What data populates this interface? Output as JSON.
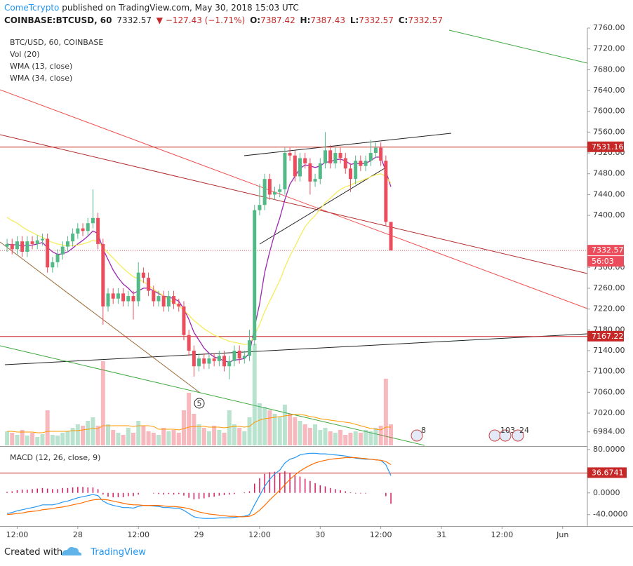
{
  "header": {
    "author": "ComeTcrypto",
    "published": "published on TradingView.com, May 30, 2018 15:03 UTC",
    "symbol": "COINBASE:BTCUSD, 60",
    "last": "7332.57",
    "change": "▼ −127.43 (−1.71%)",
    "ohlc": [
      {
        "label": "O:",
        "value": "7387.42"
      },
      {
        "label": "H:",
        "value": "7387.43"
      },
      {
        "label": "L:",
        "value": "7332.57"
      },
      {
        "label": "C:",
        "value": "7332.57"
      }
    ]
  },
  "chart_data": [
    {
      "type": "candlestick",
      "title": "BTC/USD, 60, COINBASE",
      "up_color": "#53b987",
      "down_color": "#eb4d5c",
      "open": [
        7340,
        7345,
        7335,
        7350,
        7330,
        7350,
        7345,
        7352,
        7355,
        7300,
        7310,
        7325,
        7340,
        7350,
        7365,
        7375,
        7370,
        7385,
        7395,
        7345,
        7225,
        7250,
        7240,
        7250,
        7235,
        7245,
        7235,
        7290,
        7280,
        7255,
        7235,
        7245,
        7225,
        7245,
        7230,
        7225,
        7170,
        7140,
        7110,
        7125,
        7115,
        7125,
        7120,
        7130,
        7110,
        7120,
        7140,
        7125,
        7130,
        7160,
        7410,
        7420,
        7470,
        7440,
        7445,
        7450,
        7520,
        7515,
        7475,
        7510,
        7500,
        7465,
        7470,
        7500,
        7525,
        7500,
        7520,
        7510,
        7490,
        7470,
        7505,
        7495,
        7505,
        7520,
        7530,
        7505,
        7387.42
      ],
      "high": [
        7355,
        7355,
        7360,
        7360,
        7360,
        7360,
        7362,
        7365,
        7365,
        7320,
        7335,
        7350,
        7360,
        7375,
        7385,
        7385,
        7395,
        7450,
        7405,
        7355,
        7260,
        7260,
        7260,
        7260,
        7255,
        7255,
        7310,
        7300,
        7290,
        7265,
        7255,
        7255,
        7255,
        7255,
        7240,
        7235,
        7180,
        7150,
        7135,
        7135,
        7135,
        7135,
        7140,
        7140,
        7130,
        7150,
        7150,
        7140,
        7180,
        7420,
        7460,
        7480,
        7480,
        7455,
        7460,
        7530,
        7530,
        7525,
        7520,
        7520,
        7510,
        7480,
        7510,
        7560,
        7535,
        7530,
        7530,
        7520,
        7500,
        7515,
        7515,
        7515,
        7545,
        7540,
        7540,
        7515,
        7387.43
      ],
      "low": [
        7330,
        7325,
        7325,
        7320,
        7320,
        7335,
        7335,
        7342,
        7290,
        7290,
        7300,
        7315,
        7330,
        7340,
        7355,
        7360,
        7360,
        7375,
        7335,
        7190,
        7215,
        7230,
        7230,
        7225,
        7225,
        7200,
        7225,
        7270,
        7245,
        7225,
        7225,
        7215,
        7215,
        7220,
        7215,
        7160,
        7130,
        7090,
        7100,
        7105,
        7105,
        7110,
        7110,
        7100,
        7085,
        7110,
        7115,
        7115,
        7120,
        7150,
        7400,
        7410,
        7430,
        7430,
        7435,
        7440,
        7505,
        7465,
        7465,
        7490,
        7440,
        7455,
        7460,
        7490,
        7490,
        7490,
        7500,
        7480,
        7445,
        7460,
        7485,
        7485,
        7495,
        7510,
        7495,
        7380,
        7332.57
      ],
      "close": [
        7345,
        7335,
        7350,
        7330,
        7350,
        7345,
        7352,
        7355,
        7300,
        7310,
        7325,
        7340,
        7350,
        7365,
        7375,
        7370,
        7385,
        7395,
        7345,
        7225,
        7250,
        7240,
        7250,
        7235,
        7245,
        7235,
        7290,
        7280,
        7255,
        7235,
        7245,
        7225,
        7245,
        7230,
        7225,
        7170,
        7140,
        7110,
        7125,
        7115,
        7125,
        7120,
        7130,
        7110,
        7120,
        7140,
        7125,
        7130,
        7160,
        7410,
        7420,
        7470,
        7440,
        7445,
        7450,
        7520,
        7515,
        7475,
        7510,
        7500,
        7465,
        7470,
        7500,
        7525,
        7500,
        7520,
        7510,
        7490,
        7470,
        7505,
        7495,
        7505,
        7520,
        7530,
        7505,
        7387.42,
        7332.57
      ],
      "volume": {
        "name": "Vol (20)",
        "ma_color": "#ff9800",
        "values": [
          20,
          18,
          15,
          22,
          14,
          18,
          12,
          16,
          50,
          15,
          14,
          18,
          20,
          25,
          30,
          28,
          35,
          40,
          28,
          120,
          30,
          22,
          18,
          15,
          25,
          18,
          35,
          28,
          20,
          18,
          15,
          25,
          20,
          22,
          18,
          50,
          75,
          45,
          30,
          25,
          20,
          28,
          22,
          18,
          50,
          30,
          25,
          20,
          40,
          145,
          60,
          55,
          50,
          45,
          40,
          58,
          45,
          40,
          35,
          30,
          25,
          30,
          22,
          25,
          20,
          18,
          22,
          15,
          18,
          20,
          18,
          22,
          20,
          25,
          28,
          95,
          30
        ],
        "ma": [
          20,
          20,
          19,
          19,
          19,
          19,
          18,
          18,
          20,
          20,
          20,
          20,
          20,
          21,
          21,
          22,
          23,
          24,
          24,
          28,
          28,
          28,
          28,
          28,
          28,
          27,
          28,
          28,
          28,
          27,
          23,
          23,
          23,
          23,
          22,
          24,
          26,
          27,
          27,
          27,
          26,
          26,
          26,
          25,
          26,
          27,
          27,
          26,
          27,
          33,
          36,
          38,
          39,
          40,
          41,
          42,
          43,
          44,
          44,
          43,
          41,
          40,
          38,
          37,
          36,
          35,
          34,
          33,
          32,
          30,
          28,
          26,
          24,
          23,
          22,
          26,
          26
        ]
      },
      "series": [
        {
          "name": "WMA (13, close)",
          "color": "#9c27b0",
          "values": [
            7345,
            7343,
            7344,
            7341,
            7342,
            7343,
            7345,
            7348,
            7338,
            7330,
            7325,
            7326,
            7330,
            7337,
            7345,
            7352,
            7360,
            7370,
            7365,
            7335,
            7315,
            7295,
            7280,
            7268,
            7260,
            7250,
            7255,
            7260,
            7260,
            7255,
            7250,
            7245,
            7243,
            7240,
            7235,
            7220,
            7200,
            7175,
            7160,
            7145,
            7135,
            7128,
            7125,
            7120,
            7118,
            7122,
            7123,
            7125,
            7135,
            7185,
            7230,
            7290,
            7330,
            7365,
            7395,
            7430,
            7460,
            7475,
            7490,
            7497,
            7495,
            7492,
            7495,
            7502,
            7503,
            7507,
            7508,
            7505,
            7498,
            7500,
            7499,
            7500,
            7505,
            7512,
            7512,
            7485,
            7455
          ]
        },
        {
          "name": "WMA (34, close)",
          "color": "#f5ec5c",
          "values": [
            7396,
            7390,
            7385,
            7378,
            7372,
            7367,
            7362,
            7358,
            7352,
            7348,
            7345,
            7343,
            7342,
            7342,
            7343,
            7345,
            7348,
            7352,
            7350,
            7338,
            7328,
            7318,
            7308,
            7298,
            7290,
            7282,
            7278,
            7272,
            7266,
            7258,
            7252,
            7245,
            7238,
            7232,
            7226,
            7218,
            7208,
            7198,
            7190,
            7182,
            7176,
            7170,
            7166,
            7162,
            7158,
            7156,
            7154,
            7152,
            7153,
            7170,
            7190,
            7215,
            7235,
            7255,
            7275,
            7300,
            7322,
            7340,
            7360,
            7378,
            7390,
            7400,
            7412,
            7425,
            7433,
            7442,
            7450,
            7455,
            7458,
            7463,
            7466,
            7470,
            7474,
            7478,
            7480,
            7475,
            7462
          ]
        }
      ],
      "xlim": [
        -1.4,
        114.9
      ],
      "xticks": [
        {
          "value": 2,
          "label": "12:00"
        },
        {
          "value": 14,
          "label": "28"
        },
        {
          "value": 26,
          "label": "12:00"
        },
        {
          "value": 38,
          "label": "29"
        },
        {
          "value": 50,
          "label": "12:00"
        },
        {
          "value": 62,
          "label": "30"
        },
        {
          "value": 74,
          "label": "12:00"
        },
        {
          "value": 86,
          "label": "31"
        },
        {
          "value": 98,
          "label": "12:00"
        },
        {
          "value": 110,
          "label": "Jun"
        }
      ],
      "ylim": [
        6958,
        7760
      ],
      "yticks": [
        {
          "value": 7760,
          "label": "7760.00"
        },
        {
          "value": 7720,
          "label": "7720.00"
        },
        {
          "value": 7680,
          "label": "7680.00"
        },
        {
          "value": 7640,
          "label": "7640.00"
        },
        {
          "value": 7600,
          "label": "7600.00"
        },
        {
          "value": 7560,
          "label": "7560.00"
        },
        {
          "value": 7520,
          "label": "7520.00"
        },
        {
          "value": 7480,
          "label": "7480.00"
        },
        {
          "value": 7440,
          "label": "7440.00"
        },
        {
          "value": 7400,
          "label": "7400.00"
        },
        {
          "value": 7300,
          "label": "7300.00"
        },
        {
          "value": 7260,
          "label": "7260.00"
        },
        {
          "value": 7220,
          "label": "7220.00"
        },
        {
          "value": 7180,
          "label": "7180.00"
        },
        {
          "value": 7140,
          "label": "7140.00"
        },
        {
          "value": 7100,
          "label": "7100.00"
        },
        {
          "value": 7060,
          "label": "7060.00"
        },
        {
          "value": 7020,
          "label": "7020.00"
        },
        {
          "value": 6984,
          "label": "6984.00"
        }
      ],
      "grid": false,
      "price_lines": [
        7531.16,
        7167.22
      ],
      "price_line_color": "#c62828",
      "last": 7332.57,
      "countdown": "56:03",
      "events": [
        "5",
        "8",
        "103",
        "24"
      ]
    },
    {
      "type": "macd",
      "title": "MACD (12, 26, close, 9)",
      "series": [
        {
          "color": "#2196f3",
          "values": [
            -38,
            -36,
            -33,
            -31,
            -29,
            -27,
            -25,
            -22,
            -22,
            -22,
            -20,
            -17,
            -15,
            -12,
            -9,
            -7,
            -5,
            -3,
            -5,
            -15,
            -20,
            -23,
            -25,
            -27,
            -27,
            -28,
            -25,
            -23,
            -23,
            -24,
            -25,
            -27,
            -27,
            -28,
            -28,
            -32,
            -38,
            -44,
            -46,
            -47,
            -47,
            -47,
            -46,
            -46,
            -46,
            -45,
            -44,
            -43,
            -40,
            -22,
            -5,
            12,
            25,
            35,
            42,
            55,
            62,
            65,
            70,
            72,
            73,
            73,
            72,
            72,
            71,
            70,
            69,
            68,
            66,
            64,
            63,
            62,
            62,
            61,
            60,
            52,
            32
          ]
        },
        {
          "color": "#ff6d00",
          "values": [
            -40,
            -39,
            -38,
            -37,
            -35,
            -34,
            -33,
            -31,
            -30,
            -29,
            -27,
            -26,
            -24,
            -22,
            -20,
            -18,
            -15,
            -13,
            -12,
            -12,
            -13,
            -15,
            -17,
            -19,
            -21,
            -22,
            -22,
            -23,
            -23,
            -23,
            -23,
            -24,
            -25,
            -25,
            -26,
            -27,
            -29,
            -32,
            -35,
            -37,
            -39,
            -40,
            -41,
            -42,
            -43,
            -43,
            -44,
            -44,
            -43,
            -39,
            -32,
            -23,
            -13,
            -4,
            5,
            15,
            25,
            33,
            40,
            46,
            51,
            55,
            58,
            60,
            62,
            63,
            64,
            65,
            65,
            65,
            64,
            63,
            62,
            61,
            60,
            58,
            52
          ]
        }
      ],
      "histogram": {
        "color": "#d81b60",
        "values": [
          2,
          3,
          5,
          6,
          6,
          7,
          8,
          9,
          8,
          7,
          7,
          9,
          9,
          10,
          11,
          11,
          10,
          10,
          7,
          -3,
          -7,
          -8,
          -8,
          -8,
          -6,
          -6,
          -3,
          0,
          0,
          -1,
          -2,
          -3,
          -2,
          -3,
          -2,
          -5,
          -9,
          -12,
          -11,
          -10,
          -8,
          -7,
          -5,
          -4,
          -3,
          -2,
          0,
          1,
          3,
          17,
          27,
          35,
          38,
          39,
          37,
          40,
          37,
          32,
          30,
          26,
          22,
          18,
          14,
          12,
          9,
          7,
          5,
          3,
          1,
          -1,
          -1,
          -1,
          0,
          0,
          0,
          -6,
          -20
        ]
      },
      "ylim": [
        -61,
        85
      ],
      "yticks": [
        {
          "value": 80,
          "label": "80.0000"
        },
        {
          "value": 0,
          "label": "0.0000"
        },
        {
          "value": -40,
          "label": "-40.0000"
        }
      ],
      "level": 36.6741,
      "level_color": "#c62828"
    }
  ],
  "footer": {
    "text": "Created with",
    "brand": "TradingView"
  }
}
